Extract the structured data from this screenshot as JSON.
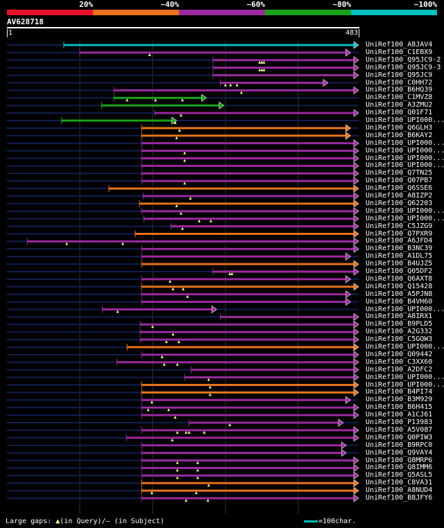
{
  "query": {
    "id": "AV628718",
    "length": 483,
    "start_label": "1",
    "end_label": "483"
  },
  "identity_scale": [
    {
      "label": "20%",
      "color": "#e8112d"
    },
    {
      "label": "~40%",
      "color": "#e8731a"
    },
    {
      "label": "~60%",
      "color": "#9b2aa0"
    },
    {
      "label": "~80%",
      "color": "#1aa31a"
    },
    {
      "label": "~100%",
      "color": "#00bfc0"
    }
  ],
  "colors": {
    "background": "#000000",
    "faint_line": "#102050",
    "grid": "#333333",
    "gap_marker": "#ffff99",
    "cyan": "#00bfc0",
    "green": "#1aa31a",
    "orange": "#e8731a",
    "purple": "#9b2aa0"
  },
  "hits": [
    {
      "label": "UniRef100_A8JAV4",
      "color": "cyan",
      "start": 78,
      "end": 483,
      "arrow": "right",
      "gaps": []
    },
    {
      "label": "UniRef100_C1EBX9",
      "color": "purple",
      "start": 100,
      "end": 472,
      "arrow": "right",
      "gaps": [
        196
      ]
    },
    {
      "label": "UniRef100_Q95JC9-2",
      "color": "purple",
      "start": 283,
      "end": 483,
      "arrow": "right",
      "gaps": [
        347,
        350,
        353
      ]
    },
    {
      "label": "UniRef100_Q95JC9-3",
      "color": "purple",
      "start": 283,
      "end": 483,
      "arrow": "right",
      "gaps": [
        347,
        350,
        353
      ]
    },
    {
      "label": "UniRef100_Q95JC9",
      "color": "purple",
      "start": 283,
      "end": 483,
      "arrow": "right",
      "gaps": []
    },
    {
      "label": "UniRef100_C0HH72",
      "color": "purple",
      "start": 293,
      "end": 441,
      "arrow": "right",
      "gaps": [
        300,
        307,
        316
      ]
    },
    {
      "label": "UniRef100_B6HQ39",
      "color": "purple",
      "start": 147,
      "end": 483,
      "arrow": "right",
      "gaps": [
        322
      ]
    },
    {
      "label": "UniRef100_C1MVZ8",
      "color": "green",
      "start": 147,
      "end": 274,
      "arrow": "right",
      "gaps": [
        165,
        204,
        241
      ]
    },
    {
      "label": "UniRef100_A3ZMU2",
      "color": "green",
      "start": 130,
      "end": 298,
      "arrow": "right",
      "gaps": []
    },
    {
      "label": "UniRef100_Q01F71",
      "color": "purple",
      "start": 203,
      "end": 483,
      "arrow": "right",
      "gaps": [
        239
      ]
    },
    {
      "label": "UniRef100_UPI000...",
      "color": "green",
      "start": 75,
      "end": 233,
      "arrow": "right",
      "gaps": [
        231
      ]
    },
    {
      "label": "UniRef100_Q6GLH3",
      "color": "orange",
      "start": 185,
      "end": 472,
      "arrow": "right",
      "gaps": [
        237
      ]
    },
    {
      "label": "UniRef100_B6KAY2",
      "color": "orange",
      "start": 185,
      "end": 472,
      "arrow": "right",
      "gaps": [
        233
      ]
    },
    {
      "label": "UniRef100_UPI000...",
      "color": "purple",
      "start": 185,
      "end": 483,
      "arrow": "right",
      "gaps": []
    },
    {
      "label": "UniRef100_UPI000...",
      "color": "purple",
      "start": 185,
      "end": 483,
      "arrow": "right",
      "gaps": [
        244
      ]
    },
    {
      "label": "UniRef100_UPI000...",
      "color": "purple",
      "start": 185,
      "end": 483,
      "arrow": "right",
      "gaps": [
        244
      ]
    },
    {
      "label": "UniRef100_UPI000...",
      "color": "purple",
      "start": 185,
      "end": 483,
      "arrow": "right",
      "gaps": []
    },
    {
      "label": "UniRef100_Q7TN25",
      "color": "purple",
      "start": 185,
      "end": 483,
      "arrow": "right",
      "gaps": []
    },
    {
      "label": "UniRef100_Q07PB7",
      "color": "purple",
      "start": 185,
      "end": 483,
      "arrow": "right",
      "gaps": [
        244
      ]
    },
    {
      "label": "UniRef100_Q6SSE6",
      "color": "orange",
      "start": 140,
      "end": 483,
      "arrow": "right",
      "gaps": []
    },
    {
      "label": "UniRef100_A8IZP2",
      "color": "purple",
      "start": 187,
      "end": 483,
      "arrow": "right",
      "gaps": [
        252
      ]
    },
    {
      "label": "UniRef100_Q62203",
      "color": "orange",
      "start": 182,
      "end": 483,
      "arrow": "right",
      "gaps": [
        233
      ]
    },
    {
      "label": "UniRef100_UPI000...",
      "color": "purple",
      "start": 185,
      "end": 483,
      "arrow": "right",
      "gaps": [
        239
      ]
    },
    {
      "label": "UniRef100_UPI000...",
      "color": "purple",
      "start": 188,
      "end": 483,
      "arrow": "right",
      "gaps": [
        264,
        280
      ]
    },
    {
      "label": "UniRef100_C5JZG9",
      "color": "purple",
      "start": 225,
      "end": 483,
      "arrow": "right",
      "gaps": [
        241
      ]
    },
    {
      "label": "UniRef100_Q7PXR9",
      "color": "orange",
      "start": 176,
      "end": 483,
      "arrow": "right",
      "gaps": []
    },
    {
      "label": "UniRef100_A6JFD4",
      "color": "purple",
      "start": 28,
      "end": 483,
      "arrow": "right",
      "gaps": [
        82,
        159
      ]
    },
    {
      "label": "UniRef100_B3NC39",
      "color": "purple",
      "start": 185,
      "end": 483,
      "arrow": "right",
      "gaps": []
    },
    {
      "label": "UniRef100_A1DL75",
      "color": "purple",
      "start": 185,
      "end": 472,
      "arrow": "right",
      "gaps": []
    },
    {
      "label": "UniRef100_B4UJZ5",
      "color": "orange",
      "start": 185,
      "end": 483,
      "arrow": "right",
      "gaps": []
    },
    {
      "label": "UniRef100_Q05DF2",
      "color": "purple",
      "start": 283,
      "end": 483,
      "arrow": "right",
      "gaps": [
        306,
        309
      ]
    },
    {
      "label": "UniRef100_Q6AXT8",
      "color": "purple",
      "start": 185,
      "end": 472,
      "arrow": "right",
      "gaps": [
        224
      ]
    },
    {
      "label": "UniRef100_Q15428",
      "color": "orange",
      "start": 185,
      "end": 483,
      "arrow": "right",
      "gaps": [
        228,
        242
      ]
    },
    {
      "label": "UniRef100_A5PJN8",
      "color": "purple",
      "start": 185,
      "end": 472,
      "arrow": "right",
      "gaps": [
        248
      ]
    },
    {
      "label": "UniRef100_B4VH60",
      "color": "purple",
      "start": 185,
      "end": 472,
      "arrow": "right",
      "gaps": []
    },
    {
      "label": "UniRef100_UPI000...",
      "color": "purple",
      "start": 131,
      "end": 288,
      "arrow": "right",
      "gaps": [
        152
      ]
    },
    {
      "label": "UniRef100_A8IRX1",
      "color": "purple",
      "start": 293,
      "end": 483,
      "arrow": "right",
      "gaps": []
    },
    {
      "label": "UniRef100_B9PLD5",
      "color": "purple",
      "start": 183,
      "end": 483,
      "arrow": "right",
      "gaps": [
        200
      ]
    },
    {
      "label": "UniRef100_A2G332",
      "color": "purple",
      "start": 183,
      "end": 483,
      "arrow": "right",
      "gaps": [
        228
      ]
    },
    {
      "label": "UniRef100_C5GQW3",
      "color": "purple",
      "start": 183,
      "end": 483,
      "arrow": "right",
      "gaps": [
        219,
        236
      ]
    },
    {
      "label": "UniRef100_UPI000...",
      "color": "orange",
      "start": 165,
      "end": 483,
      "arrow": "right",
      "gaps": []
    },
    {
      "label": "UniRef100_Q09442",
      "color": "purple",
      "start": 185,
      "end": 483,
      "arrow": "right",
      "gaps": [
        213
      ]
    },
    {
      "label": "UniRef100_C3XX60",
      "color": "purple",
      "start": 151,
      "end": 483,
      "arrow": "right",
      "gaps": [
        216,
        234
      ]
    },
    {
      "label": "UniRef100_A2DFC2",
      "color": "purple",
      "start": 253,
      "end": 483,
      "arrow": "right",
      "gaps": []
    },
    {
      "label": "UniRef100_UPI000...",
      "color": "purple",
      "start": 244,
      "end": 483,
      "arrow": "right",
      "gaps": [
        277
      ]
    },
    {
      "label": "UniRef100_UPI000...",
      "color": "orange",
      "start": 185,
      "end": 483,
      "arrow": "right",
      "gaps": [
        279
      ]
    },
    {
      "label": "UniRef100_B4PI74",
      "color": "orange",
      "start": 185,
      "end": 483,
      "arrow": "right",
      "gaps": [
        279
      ]
    },
    {
      "label": "UniRef100_B3M929",
      "color": "purple",
      "start": 185,
      "end": 472,
      "arrow": "right",
      "gaps": [
        199
      ]
    },
    {
      "label": "UniRef100_B6H415",
      "color": "purple",
      "start": 185,
      "end": 483,
      "arrow": "right",
      "gaps": [
        194,
        222
      ]
    },
    {
      "label": "UniRef100_A1CJ61",
      "color": "purple",
      "start": 185,
      "end": 483,
      "arrow": "right",
      "gaps": [
        231
      ]
    },
    {
      "label": "UniRef100_P13983",
      "color": "purple",
      "start": 250,
      "end": 462,
      "arrow": "right",
      "gaps": [
        306
      ]
    },
    {
      "label": "UniRef100_A5V087",
      "color": "purple",
      "start": 185,
      "end": 483,
      "arrow": "right",
      "gaps": [
        234,
        246,
        250,
        271
      ]
    },
    {
      "label": "UniRef100_Q0PIW3",
      "color": "purple",
      "start": 164,
      "end": 483,
      "arrow": "right",
      "gaps": [
        227
      ]
    },
    {
      "label": "UniRef100_B9RPC0",
      "color": "purple",
      "start": 185,
      "end": 466,
      "arrow": "right",
      "gaps": []
    },
    {
      "label": "UniRef100_Q9VAY4",
      "color": "purple",
      "start": 185,
      "end": 466,
      "arrow": "right",
      "gaps": []
    },
    {
      "label": "UniRef100_Q8MRP6",
      "color": "purple",
      "start": 185,
      "end": 483,
      "arrow": "right",
      "gaps": [
        234,
        262
      ]
    },
    {
      "label": "UniRef100_Q8IMM6",
      "color": "purple",
      "start": 185,
      "end": 483,
      "arrow": "right",
      "gaps": [
        234,
        262
      ]
    },
    {
      "label": "UniRef100_Q5ASL5",
      "color": "purple",
      "start": 185,
      "end": 483,
      "arrow": "right",
      "gaps": [
        234,
        262
      ]
    },
    {
      "label": "UniRef100_C8VA31",
      "color": "orange",
      "start": 185,
      "end": 483,
      "arrow": "right",
      "gaps": [
        277
      ]
    },
    {
      "label": "UniRef100_A8NUD4",
      "color": "orange",
      "start": 185,
      "end": 483,
      "arrow": "right",
      "gaps": [
        199,
        260
      ]
    },
    {
      "label": "UniRef100_B8JFY6",
      "color": "purple",
      "start": 185,
      "end": 483,
      "arrow": "right",
      "gaps": [
        246,
        276
      ]
    }
  ],
  "footer": {
    "gaps_label": "Large gaps: ",
    "query_marker": "▲",
    "query_text": "(in Query)/",
    "subject_marker": "–",
    "subject_text": " (in Subject)",
    "scale_label": "=100char."
  }
}
